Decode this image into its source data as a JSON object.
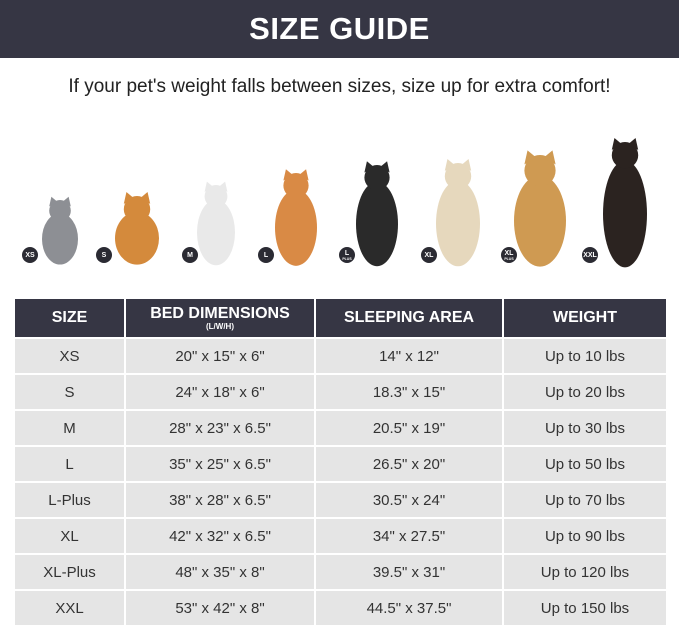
{
  "header": {
    "title": "SIZE GUIDE"
  },
  "subtitle": "If your pet's weight falls between sizes, size up for extra comfort!",
  "pets": [
    {
      "badge": "XS",
      "badge_sub": "",
      "animal": "cat",
      "color": "#8d8f94"
    },
    {
      "badge": "S",
      "badge_sub": "",
      "animal": "pomeranian",
      "color": "#d48a3c"
    },
    {
      "badge": "M",
      "badge_sub": "",
      "animal": "french-bulldog",
      "color": "#e9e9e9"
    },
    {
      "badge": "L",
      "badge_sub": "",
      "animal": "shiba-inu",
      "color": "#d98a45"
    },
    {
      "badge": "L",
      "badge_sub": "PLUS",
      "animal": "border-collie",
      "color": "#2a2a2a"
    },
    {
      "badge": "XL",
      "badge_sub": "",
      "animal": "labrador",
      "color": "#e6d8bd"
    },
    {
      "badge": "XL",
      "badge_sub": "PLUS",
      "animal": "golden-retriever",
      "color": "#cf9a52"
    },
    {
      "badge": "XXL",
      "badge_sub": "",
      "animal": "doberman",
      "color": "#2b2320"
    }
  ],
  "table": {
    "headers": [
      "SIZE",
      "BED DIMENSIONS",
      "SLEEPING AREA",
      "WEIGHT"
    ],
    "bed_unit": "(L/W/H)",
    "rows": [
      [
        "XS",
        "20\" x 15\" x 6\"",
        "14\" x 12\"",
        "Up to 10 lbs"
      ],
      [
        "S",
        "24\" x 18\" x 6\"",
        "18.3\" x 15\"",
        "Up to 20 lbs"
      ],
      [
        "M",
        "28\" x 23\" x 6.5\"",
        "20.5\" x 19\"",
        "Up to 30 lbs"
      ],
      [
        "L",
        "35\" x 25\" x 6.5\"",
        "26.5\" x 20\"",
        "Up to 50 lbs"
      ],
      [
        "L-Plus",
        "38\" x 28\" x 6.5\"",
        "30.5\" x 24\"",
        "Up to 70 lbs"
      ],
      [
        "XL",
        "42\" x 32\" x 6.5\"",
        "34\" x 27.5\"",
        "Up to 90 lbs"
      ],
      [
        "XL-Plus",
        "48\" x 35\" x 8\"",
        "39.5\" x 31\"",
        "Up to 120 lbs"
      ],
      [
        "XXL",
        "53\" x 42\" x 8\"",
        "44.5\" x 37.5\"",
        "Up to 150 lbs"
      ]
    ]
  }
}
